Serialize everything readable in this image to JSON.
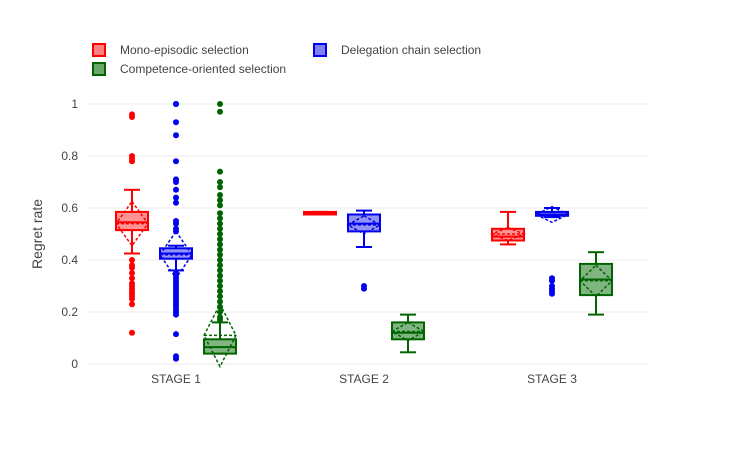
{
  "chart_data": {
    "type": "box",
    "title": "",
    "xlabel": "",
    "ylabel": "Regret rate",
    "ylim": [
      0,
      1.05
    ],
    "yticks": [
      0,
      0.2,
      0.4,
      0.6,
      0.8,
      1
    ],
    "ytick_labels": [
      "0",
      "0.2",
      "0.4",
      "0.6",
      "0.8",
      "1"
    ],
    "categories": [
      "STAGE 1",
      "STAGE 2",
      "STAGE 3"
    ],
    "grid": true,
    "legend_position": "top-left, two columns",
    "series": [
      {
        "name": "Mono-episodic selection",
        "color": "#ff0000",
        "fill": "#ff8080",
        "boxes": [
          {
            "category": "STAGE 1",
            "q1": 0.515,
            "median": 0.545,
            "q3": 0.585,
            "whisker_low": 0.425,
            "whisker_high": 0.67,
            "mean": 0.54,
            "sd": 0.085,
            "outliers": [
              0.96,
              0.95,
              0.8,
              0.79,
              0.78,
              0.4,
              0.38,
              0.37,
              0.35,
              0.33,
              0.31,
              0.3,
              0.29,
              0.28,
              0.27,
              0.26,
              0.25,
              0.23,
              0.12
            ]
          },
          {
            "category": "STAGE 2",
            "q1": 0.575,
            "median": 0.58,
            "q3": 0.585,
            "whisker_low": 0.575,
            "whisker_high": 0.585,
            "mean": 0.58,
            "sd": 0.003,
            "outliers": []
          },
          {
            "category": "STAGE 3",
            "q1": 0.475,
            "median": 0.49,
            "q3": 0.52,
            "whisker_low": 0.46,
            "whisker_high": 0.585,
            "mean": 0.5,
            "sd": 0.025,
            "outliers": []
          }
        ]
      },
      {
        "name": "Delegation chain selection",
        "color": "#0000ee",
        "fill": "#8080f0",
        "boxes": [
          {
            "category": "STAGE 1",
            "q1": 0.405,
            "median": 0.425,
            "q3": 0.445,
            "whisker_low": 0.36,
            "whisker_high": 0.455,
            "mean": 0.42,
            "sd": 0.09,
            "outliers": [
              1.0,
              1.0,
              0.93,
              0.88,
              0.78,
              0.71,
              0.7,
              0.67,
              0.64,
              0.62,
              0.55,
              0.54,
              0.52,
              0.51,
              0.35,
              0.34,
              0.33,
              0.32,
              0.31,
              0.3,
              0.29,
              0.28,
              0.27,
              0.26,
              0.25,
              0.24,
              0.23,
              0.22,
              0.21,
              0.2,
              0.19,
              0.115,
              0.03,
              0.02
            ]
          },
          {
            "category": "STAGE 2",
            "q1": 0.51,
            "median": 0.54,
            "q3": 0.575,
            "whisker_low": 0.45,
            "whisker_high": 0.59,
            "mean": 0.535,
            "sd": 0.035,
            "outliers": [
              0.3,
              0.29
            ]
          },
          {
            "category": "STAGE 3",
            "q1": 0.57,
            "median": 0.575,
            "q3": 0.585,
            "whisker_low": 0.565,
            "whisker_high": 0.6,
            "mean": 0.575,
            "sd": 0.03,
            "outliers": [
              0.33,
              0.32,
              0.3,
              0.29,
              0.28,
              0.27
            ]
          }
        ]
      },
      {
        "name": "Competence-oriented selection",
        "color": "#006400",
        "fill": "#6aa76a",
        "boxes": [
          {
            "category": "STAGE 1",
            "q1": 0.04,
            "median": 0.065,
            "q3": 0.095,
            "whisker_low": 0.04,
            "whisker_high": 0.16,
            "mean": 0.11,
            "sd": 0.12,
            "outliers": [
              1.0,
              0.97,
              0.74,
              0.7,
              0.68,
              0.65,
              0.63,
              0.61,
              0.58,
              0.56,
              0.54,
              0.52,
              0.5,
              0.48,
              0.46,
              0.44,
              0.42,
              0.4,
              0.38,
              0.36,
              0.34,
              0.32,
              0.3,
              0.28,
              0.26,
              0.24,
              0.22,
              0.2,
              0.18,
              0.17
            ]
          },
          {
            "category": "STAGE 2",
            "q1": 0.095,
            "median": 0.12,
            "q3": 0.16,
            "whisker_low": 0.045,
            "whisker_high": 0.19,
            "mean": 0.125,
            "sd": 0.035,
            "outliers": []
          },
          {
            "category": "STAGE 3",
            "q1": 0.265,
            "median": 0.325,
            "q3": 0.385,
            "whisker_low": 0.19,
            "whisker_high": 0.43,
            "mean": 0.32,
            "sd": 0.06,
            "outliers": []
          }
        ]
      }
    ]
  }
}
